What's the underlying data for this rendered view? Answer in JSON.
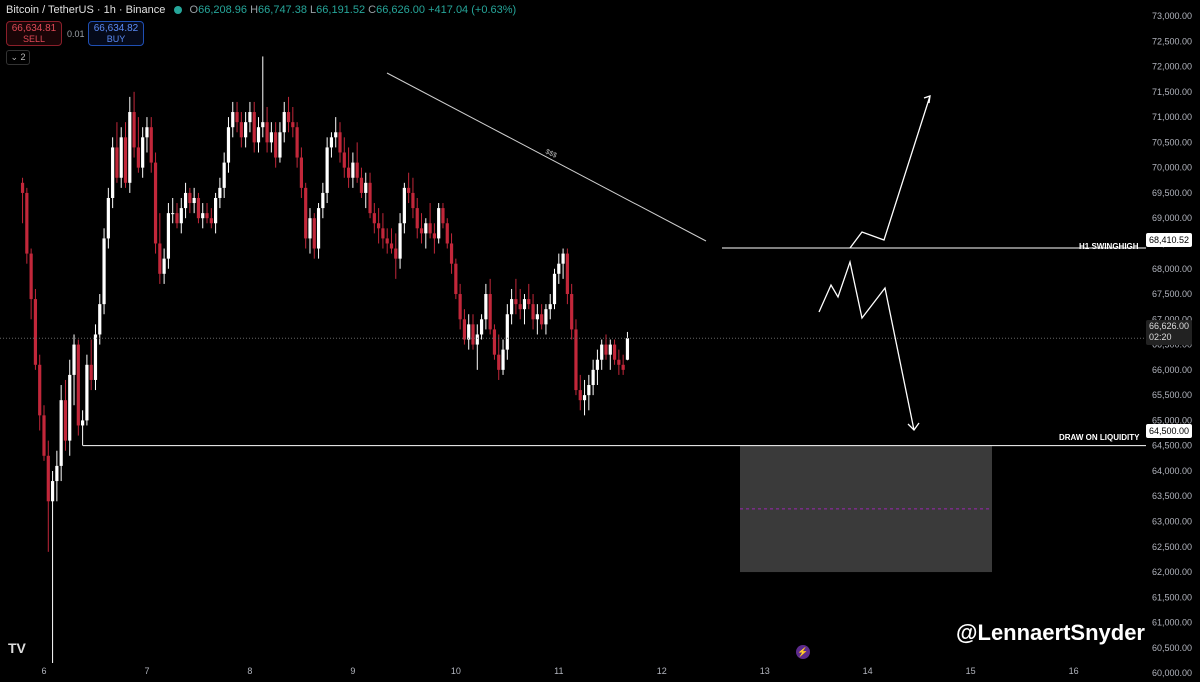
{
  "header": {
    "symbol": "Bitcoin / TetherUS · 1h · Binance",
    "open_label": "O",
    "open": "66,208.96",
    "high_label": "H",
    "high": "66,747.38",
    "low_label": "L",
    "low": "66,191.52",
    "close_label": "C",
    "close": "66,626.00",
    "change": "+417.04 (+0.63%)"
  },
  "trade": {
    "sell_price": "66,634.81",
    "sell_label": "SELL",
    "quantity": "0.01",
    "buy_price": "66,634.82",
    "buy_label": "BUY"
  },
  "indicators_collapse": "2",
  "current_price": {
    "price": "66,626.00",
    "countdown": "02:20"
  },
  "watermark": "@LennaertSnyder",
  "logo": "TV",
  "annotations": {
    "h1_swinghigh": "H1 SWINGHIGH",
    "h1_swinghigh_price": "68,410.52",
    "draw_on_liquidity": "DRAW ON LIQUIDITY",
    "draw_on_liquidity_price": "64,500.00",
    "trendline_text": "$$$"
  },
  "colors": {
    "background": "#000000",
    "up": "#ffffff",
    "down": "#c2273a",
    "line": "#ffffff",
    "zone": "#3a3a3a"
  },
  "icons": [
    "dot-icon",
    "collapse-chevron-icon",
    "lightning-icon",
    "tradingview-logo-icon"
  ],
  "chart_data": {
    "type": "candlestick",
    "title": "Bitcoin / TetherUS · 1h · Binance",
    "y_range": [
      60000,
      73000
    ],
    "y_ticks": [
      60000,
      60500,
      61000,
      61500,
      62000,
      62500,
      63000,
      63500,
      64000,
      64500,
      65000,
      65500,
      66000,
      66500,
      67000,
      67500,
      68000,
      68500,
      69000,
      69500,
      70000,
      70500,
      71000,
      71500,
      72000,
      72500,
      73000
    ],
    "y_tick_labels": [
      "60,000.00",
      "60,500.00",
      "61,000.00",
      "61,500.00",
      "62,000.00",
      "62,500.00",
      "63,000.00",
      "63,500.00",
      "64,000.00",
      "64,500.00",
      "65,000.00",
      "65,500.00",
      "66,000.00",
      "66,500.00",
      "67,000.00",
      "67,500.00",
      "68,000.00",
      "68,500.00",
      "69,000.00",
      "69,500.00",
      "70,000.00",
      "70,500.00",
      "71,000.00",
      "71,500.00",
      "72,000.00",
      "72,500.00",
      "73,000.00"
    ],
    "x_range_hours": [
      -6,
      256
    ],
    "x_ticks": [
      0,
      24,
      48,
      72,
      96,
      120,
      144,
      168,
      192,
      216,
      240
    ],
    "x_tick_labels": [
      "6",
      "7",
      "8",
      "9",
      "10",
      "11",
      "12",
      "13",
      "14",
      "15",
      "16"
    ],
    "candles": [
      [
        -5,
        69700,
        69800,
        68900,
        69500
      ],
      [
        -4,
        69500,
        69600,
        68100,
        68300
      ],
      [
        -3,
        68300,
        68400,
        67000,
        67400
      ],
      [
        -2,
        67400,
        67600,
        66000,
        66100
      ],
      [
        -1,
        66100,
        66300,
        64800,
        65100
      ],
      [
        0,
        65100,
        65300,
        64200,
        64300
      ],
      [
        1,
        64300,
        64600,
        62400,
        63400
      ],
      [
        2,
        63400,
        64000,
        60200,
        63800
      ],
      [
        3,
        63800,
        64400,
        63400,
        64100
      ],
      [
        4,
        64100,
        65700,
        63800,
        65400
      ],
      [
        5,
        65400,
        65800,
        64400,
        64600
      ],
      [
        6,
        64600,
        66200,
        64300,
        65900
      ],
      [
        7,
        65900,
        66700,
        65300,
        66500
      ],
      [
        8,
        66500,
        66600,
        64700,
        64900
      ],
      [
        9,
        64900,
        65200,
        64500,
        65000
      ],
      [
        10,
        65000,
        66300,
        64900,
        66100
      ],
      [
        11,
        66100,
        66600,
        65600,
        65800
      ],
      [
        12,
        65800,
        66900,
        65600,
        66700
      ],
      [
        13,
        66700,
        67500,
        66500,
        67300
      ],
      [
        14,
        67300,
        68800,
        67100,
        68600
      ],
      [
        15,
        68600,
        69600,
        68400,
        69400
      ],
      [
        16,
        69400,
        70600,
        69200,
        70400
      ],
      [
        17,
        70400,
        70900,
        69700,
        69800
      ],
      [
        18,
        69800,
        70800,
        69600,
        70600
      ],
      [
        19,
        70600,
        70900,
        69600,
        69700
      ],
      [
        20,
        69700,
        71400,
        69500,
        71100
      ],
      [
        21,
        71100,
        71500,
        70200,
        70400
      ],
      [
        22,
        70400,
        71000,
        69900,
        70000
      ],
      [
        23,
        70000,
        70800,
        69800,
        70600
      ],
      [
        24,
        70600,
        71000,
        70300,
        70800
      ],
      [
        25,
        70800,
        71000,
        69900,
        70100
      ],
      [
        26,
        70100,
        70300,
        68300,
        68500
      ],
      [
        27,
        68500,
        69100,
        67700,
        67900
      ],
      [
        28,
        67900,
        68400,
        67700,
        68200
      ],
      [
        29,
        68200,
        69300,
        68000,
        69100
      ],
      [
        30,
        69100,
        69400,
        68900,
        69100
      ],
      [
        31,
        69100,
        69300,
        68800,
        68900
      ],
      [
        32,
        68900,
        69400,
        68700,
        69200
      ],
      [
        33,
        69200,
        69700,
        69000,
        69500
      ],
      [
        34,
        69500,
        69600,
        69100,
        69300
      ],
      [
        35,
        69300,
        69600,
        69100,
        69400
      ],
      [
        36,
        69400,
        69500,
        68900,
        69000
      ],
      [
        37,
        69000,
        69300,
        68800,
        69100
      ],
      [
        38,
        69100,
        69300,
        68900,
        69000
      ],
      [
        39,
        69000,
        69200,
        68800,
        68900
      ],
      [
        40,
        68900,
        69500,
        68700,
        69400
      ],
      [
        41,
        69400,
        69800,
        69200,
        69600
      ],
      [
        42,
        69600,
        70300,
        69400,
        70100
      ],
      [
        43,
        70100,
        71000,
        69900,
        70800
      ],
      [
        44,
        70800,
        71300,
        70600,
        71100
      ],
      [
        45,
        71100,
        71300,
        70700,
        70900
      ],
      [
        46,
        70900,
        71100,
        70400,
        70600
      ],
      [
        47,
        70600,
        71100,
        70400,
        70900
      ],
      [
        48,
        70900,
        71300,
        70700,
        71100
      ],
      [
        49,
        71100,
        71300,
        70300,
        70500
      ],
      [
        50,
        70500,
        71000,
        70300,
        70800
      ],
      [
        51,
        70800,
        72200,
        70600,
        70900
      ],
      [
        52,
        70900,
        71200,
        70300,
        70500
      ],
      [
        53,
        70500,
        70900,
        70300,
        70700
      ],
      [
        54,
        70700,
        70900,
        70000,
        70200
      ],
      [
        55,
        70200,
        70900,
        70100,
        70700
      ],
      [
        56,
        70700,
        71300,
        70500,
        71100
      ],
      [
        57,
        71100,
        71400,
        70700,
        70900
      ],
      [
        58,
        70900,
        71200,
        70600,
        70800
      ],
      [
        59,
        70800,
        70900,
        70000,
        70200
      ],
      [
        60,
        70200,
        70400,
        69400,
        69600
      ],
      [
        61,
        69600,
        69700,
        68400,
        68600
      ],
      [
        62,
        68600,
        69200,
        68300,
        69000
      ],
      [
        63,
        69000,
        69100,
        68200,
        68400
      ],
      [
        64,
        68400,
        69300,
        68200,
        69200
      ],
      [
        65,
        69200,
        69700,
        69000,
        69500
      ],
      [
        66,
        69500,
        70600,
        69300,
        70400
      ],
      [
        67,
        70400,
        70700,
        70200,
        70600
      ],
      [
        68,
        70600,
        71000,
        70400,
        70700
      ],
      [
        69,
        70700,
        70900,
        70100,
        70300
      ],
      [
        70,
        70300,
        70600,
        69800,
        70000
      ],
      [
        71,
        70000,
        70400,
        69600,
        69800
      ],
      [
        72,
        69800,
        70300,
        69600,
        70100
      ],
      [
        73,
        70100,
        70500,
        69700,
        69800
      ],
      [
        74,
        69800,
        70000,
        69400,
        69500
      ],
      [
        75,
        69500,
        69900,
        69200,
        69700
      ],
      [
        76,
        69700,
        69900,
        69000,
        69100
      ],
      [
        77,
        69100,
        69300,
        68700,
        68900
      ],
      [
        78,
        68900,
        69200,
        68500,
        68800
      ],
      [
        79,
        68800,
        69100,
        68400,
        68600
      ],
      [
        80,
        68600,
        68800,
        68300,
        68500
      ],
      [
        81,
        68500,
        68800,
        68300,
        68400
      ],
      [
        82,
        68400,
        68700,
        67800,
        68200
      ],
      [
        83,
        68200,
        69100,
        68000,
        68900
      ],
      [
        84,
        68900,
        69700,
        68700,
        69600
      ],
      [
        85,
        69600,
        69900,
        69300,
        69500
      ],
      [
        86,
        69500,
        69800,
        69000,
        69200
      ],
      [
        87,
        69200,
        69400,
        68600,
        68800
      ],
      [
        88,
        68800,
        69100,
        68500,
        68700
      ],
      [
        89,
        68700,
        69000,
        68400,
        68900
      ],
      [
        90,
        68900,
        69300,
        68600,
        68700
      ],
      [
        91,
        68700,
        68900,
        68300,
        68600
      ],
      [
        92,
        68600,
        69300,
        68500,
        69200
      ],
      [
        93,
        69200,
        69300,
        68800,
        68900
      ],
      [
        94,
        68900,
        69000,
        68400,
        68500
      ],
      [
        95,
        68500,
        68700,
        67900,
        68100
      ],
      [
        96,
        68100,
        68200,
        67400,
        67500
      ],
      [
        97,
        67500,
        67700,
        66800,
        67000
      ],
      [
        98,
        67000,
        67200,
        66500,
        66600
      ],
      [
        99,
        66600,
        67100,
        66400,
        66900
      ],
      [
        100,
        66900,
        67100,
        66400,
        66500
      ],
      [
        101,
        66500,
        66900,
        66000,
        66700
      ],
      [
        102,
        66700,
        67100,
        66600,
        67000
      ],
      [
        103,
        67000,
        67700,
        66800,
        67500
      ],
      [
        104,
        67500,
        67800,
        66700,
        66800
      ],
      [
        105,
        66800,
        66900,
        66200,
        66300
      ],
      [
        106,
        66300,
        66700,
        65800,
        66000
      ],
      [
        107,
        66000,
        66600,
        65900,
        66400
      ],
      [
        108,
        66400,
        67300,
        66200,
        67100
      ],
      [
        109,
        67100,
        67600,
        66900,
        67400
      ],
      [
        110,
        67400,
        67800,
        67100,
        67300
      ],
      [
        111,
        67300,
        67600,
        67000,
        67200
      ],
      [
        112,
        67200,
        67500,
        66900,
        67400
      ],
      [
        113,
        67400,
        67700,
        67200,
        67300
      ],
      [
        114,
        67300,
        67500,
        66800,
        67000
      ],
      [
        115,
        67000,
        67300,
        66700,
        67100
      ],
      [
        116,
        67100,
        67300,
        66800,
        66900
      ],
      [
        117,
        66900,
        67300,
        66700,
        67200
      ],
      [
        118,
        67200,
        67500,
        67000,
        67300
      ],
      [
        119,
        67300,
        68000,
        67200,
        67900
      ],
      [
        120,
        67900,
        68300,
        67700,
        68100
      ],
      [
        121,
        68100,
        68400,
        67800,
        68300
      ],
      [
        122,
        68300,
        68400,
        67300,
        67500
      ],
      [
        123,
        67500,
        67700,
        66600,
        66800
      ],
      [
        124,
        66800,
        67000,
        65500,
        65600
      ],
      [
        125,
        65600,
        65900,
        65200,
        65400
      ],
      [
        126,
        65400,
        65800,
        65100,
        65500
      ],
      [
        127,
        65500,
        65900,
        65200,
        65700
      ],
      [
        128,
        65700,
        66200,
        65500,
        66000
      ],
      [
        129,
        66000,
        66400,
        65700,
        66200
      ],
      [
        130,
        66200,
        66600,
        66000,
        66500
      ],
      [
        131,
        66500,
        66700,
        66200,
        66300
      ],
      [
        132,
        66300,
        66600,
        66000,
        66500
      ],
      [
        133,
        66500,
        66600,
        66100,
        66200
      ],
      [
        134,
        66200,
        66400,
        65900,
        66100
      ],
      [
        135,
        66100,
        66300,
        65900,
        66000
      ],
      [
        136,
        66200,
        66750,
        66190,
        66626
      ]
    ]
  }
}
